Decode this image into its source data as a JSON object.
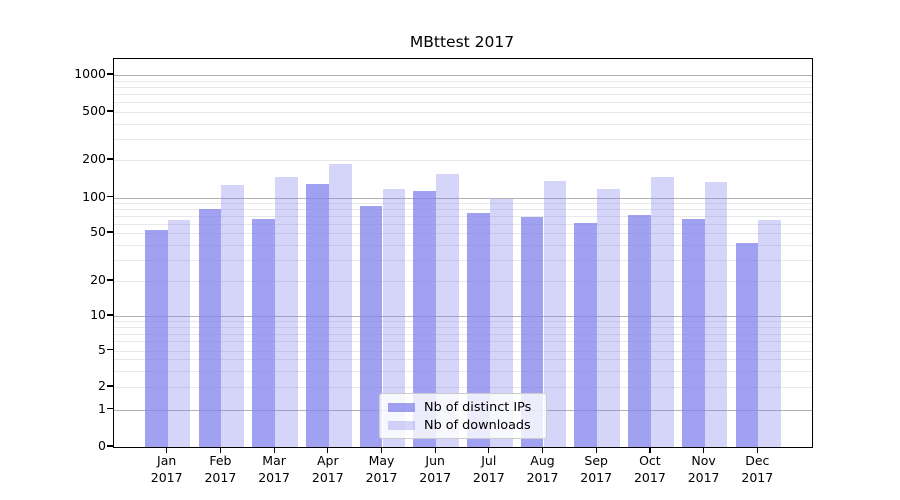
{
  "title": "MBttest 2017",
  "chart_data": {
    "type": "bar",
    "categories": [
      "Jan",
      "Feb",
      "Mar",
      "Apr",
      "May",
      "Jun",
      "Jul",
      "Aug",
      "Sep",
      "Oct",
      "Nov",
      "Dec"
    ],
    "year": "2017",
    "series": [
      {
        "name": "Nb of distinct IPs",
        "color": "#8181ed",
        "alpha": 0.75,
        "values": [
          53,
          80,
          66,
          129,
          84,
          112,
          74,
          68,
          61,
          71,
          66,
          41
        ]
      },
      {
        "name": "Nb of downloads",
        "color": "#8181ed",
        "alpha": 0.33,
        "values": [
          65,
          125,
          145,
          185,
          118,
          155,
          98,
          135,
          118,
          145,
          133,
          64
        ]
      }
    ],
    "yscale": "symlog",
    "y_ticks": [
      0,
      1,
      2,
      5,
      10,
      20,
      50,
      100,
      200,
      500,
      1000
    ],
    "ylim": [
      0,
      1400
    ],
    "grid": "both",
    "legend_position": "lower center",
    "colors": {
      "bar_dark_rendered": "#a4a4f2",
      "bar_light_rendered": "#d8d8fa",
      "grid_major": "#b2b2b2",
      "grid_minor": "#e8e8e8",
      "spine": "#000000"
    }
  }
}
